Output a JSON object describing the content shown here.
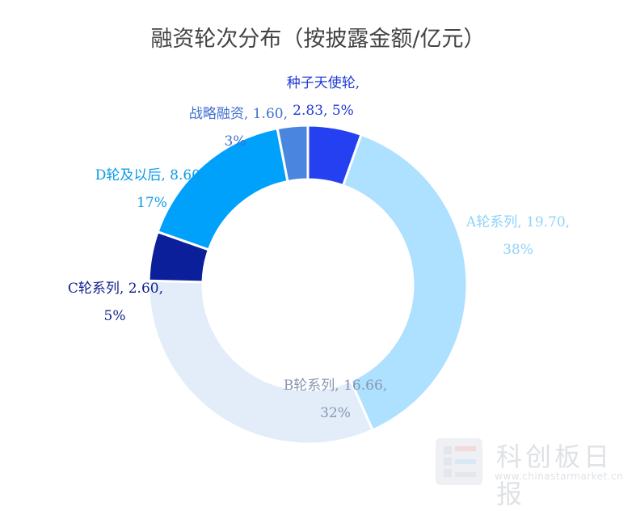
{
  "chart_data": {
    "type": "pie",
    "title": "融资轮次分布（按披露金额/亿元）",
    "donut": true,
    "slices": [
      {
        "name": "种子天使轮",
        "value": 2.83,
        "percent": "5%",
        "label_line1": "种子天使轮,",
        "label_line2": "2.83, 5%",
        "color": "#2440f0",
        "label_color": "#1f3ad6"
      },
      {
        "name": "A轮系列",
        "value": 19.7,
        "percent": "38%",
        "label_line1": "A轮系列, 19.70,",
        "label_line2": "38%",
        "color": "#aee0ff",
        "label_color": "#8fd3f8"
      },
      {
        "name": "B轮系列",
        "value": 16.66,
        "percent": "32%",
        "label_line1": "B轮系列, 16.66,",
        "label_line2": "32%",
        "color": "#e2edf9",
        "label_color": "#8798b0"
      },
      {
        "name": "C轮系列",
        "value": 2.6,
        "percent": "5%",
        "label_line1": "C轮系列, 2.60,",
        "label_line2": "5%",
        "color": "#0c1f9a",
        "label_color": "#0d1f8c"
      },
      {
        "name": "D轮及以后",
        "value": 8.6,
        "percent": "17%",
        "label_line1": "D轮及以后, 8.60",
        "label_line2": "17%",
        "color": "#00a1fb",
        "label_color": "#0a9be8"
      },
      {
        "name": "战略融资",
        "value": 1.6,
        "percent": "3%",
        "label_line1": "战略融资, 1.60,",
        "label_line2": "3%",
        "color": "#4a86df",
        "label_color": "#3f6fd0"
      }
    ]
  },
  "watermark": {
    "brand": "科创板日报",
    "url": "www.chinastarmarket.cn"
  }
}
